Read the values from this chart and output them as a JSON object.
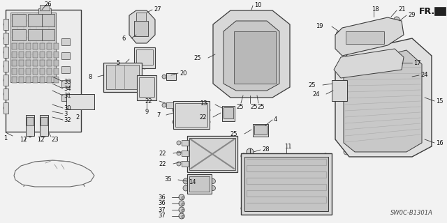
{
  "bg_color": "#f0f0f0",
  "diagram_code": "SW0C-B1301A",
  "fr_label": "FR.",
  "image_bg": "#f2f2f2",
  "line_color": "#3a3a3a",
  "label_color": "#111111",
  "label_fs": 6.0,
  "bold_fs": 7.5
}
